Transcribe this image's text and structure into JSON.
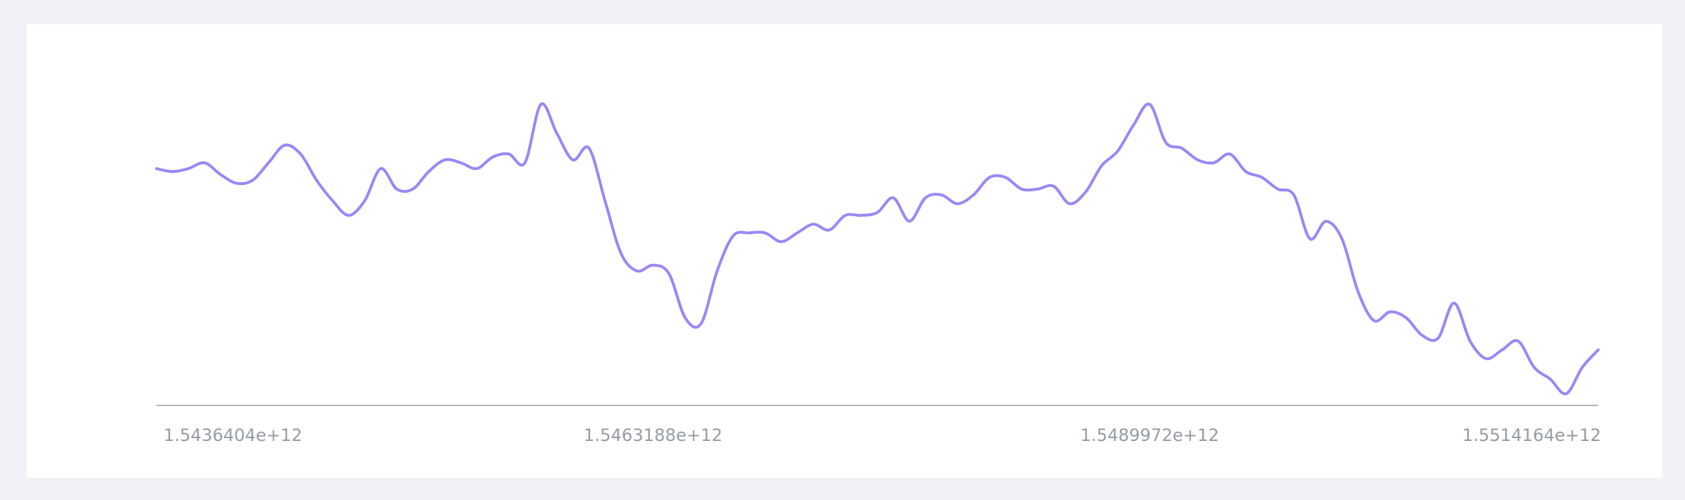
{
  "chart_data": {
    "type": "line",
    "title": "",
    "xlabel": "",
    "ylabel": "",
    "grid": false,
    "legend": "none",
    "xlim": [
      1543640400000,
      1551416400000
    ],
    "ylim": [
      0,
      100
    ],
    "x_ticks": [
      {
        "value": 1543640400000,
        "label": "1.5436404e+12"
      },
      {
        "value": 1546318800000,
        "label": "1.5463188e+12"
      },
      {
        "value": 1548997200000,
        "label": "1.5489972e+12"
      },
      {
        "value": 1551416400000,
        "label": "1.5514164e+12"
      }
    ],
    "series": [
      {
        "color": "#9b87f5",
        "x": [
          1543640400000,
          1543726800000,
          1543813200000,
          1543899600000,
          1543986000000,
          1544072400000,
          1544158800000,
          1544245200000,
          1544331600000,
          1544418000000,
          1544504400000,
          1544590800000,
          1544677200000,
          1544763600000,
          1544850000000,
          1544936400000,
          1545022800000,
          1545109200000,
          1545195600000,
          1545282000000,
          1545368400000,
          1545454800000,
          1545541200000,
          1545627600000,
          1545714000000,
          1545800400000,
          1545886800000,
          1545973200000,
          1546059600000,
          1546146000000,
          1546232400000,
          1546318800000,
          1546405200000,
          1546491600000,
          1546578000000,
          1546664400000,
          1546750800000,
          1546837200000,
          1546923600000,
          1547010000000,
          1547096400000,
          1547182800000,
          1547269200000,
          1547355600000,
          1547442000000,
          1547528400000,
          1547614800000,
          1547701200000,
          1547787600000,
          1547874000000,
          1547960400000,
          1548046800000,
          1548133200000,
          1548219600000,
          1548306000000,
          1548392400000,
          1548478800000,
          1548565200000,
          1548651600000,
          1548738000000,
          1548824400000,
          1548910800000,
          1548997200000,
          1549083600000,
          1549170000000,
          1549256400000,
          1549342800000,
          1549429200000,
          1549515600000,
          1549602000000,
          1549688400000,
          1549774800000,
          1549861200000,
          1549947600000,
          1550034000000,
          1550120400000,
          1550206800000,
          1550293200000,
          1550379600000,
          1550466000000,
          1550552400000,
          1550638800000,
          1550725200000,
          1550811600000,
          1550898000000,
          1550984400000,
          1551070800000,
          1551157200000,
          1551243600000,
          1551330000000,
          1551416400000
        ],
        "y": [
          81,
          80,
          81,
          83,
          79,
          76,
          77,
          83,
          89,
          86,
          77,
          70,
          65,
          70,
          81,
          74,
          74,
          80,
          84,
          83,
          81,
          85,
          86,
          83,
          103,
          93,
          84,
          88,
          70,
          52,
          46,
          48,
          45,
          30,
          28,
          46,
          58,
          59,
          59,
          56,
          59,
          62,
          60,
          65,
          65,
          66,
          71,
          63,
          71,
          72,
          69,
          72,
          78,
          78,
          74,
          74,
          75,
          69,
          73,
          82,
          87,
          96,
          103,
          90,
          88,
          84,
          83,
          86,
          80,
          78,
          74,
          72,
          57,
          63,
          57,
          39,
          29,
          32,
          30,
          24,
          23,
          35,
          22,
          16,
          19,
          22,
          13,
          9,
          4,
          13,
          19
        ]
      }
    ]
  }
}
